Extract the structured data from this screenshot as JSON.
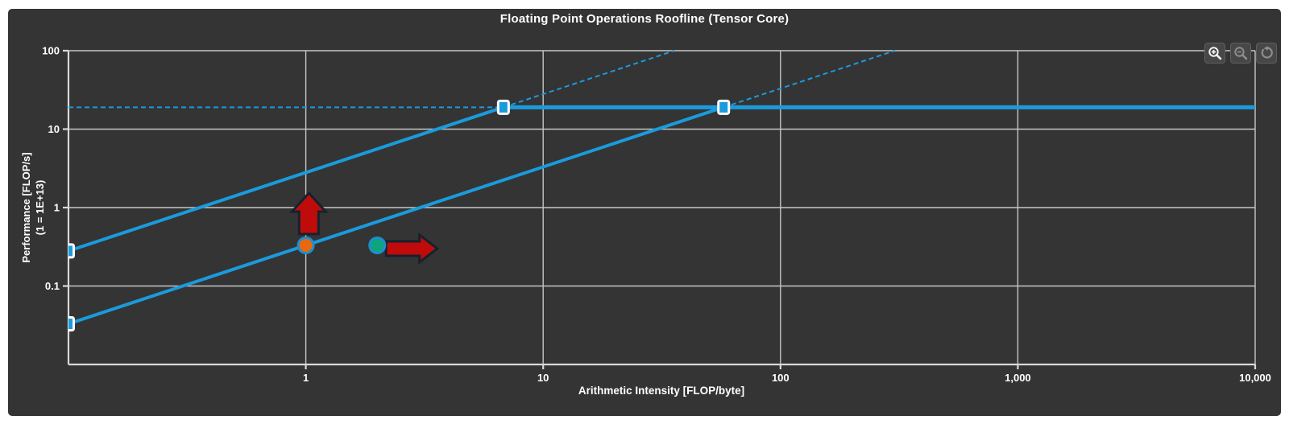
{
  "header": {
    "title": "Floating Point Operations Roofline (Tensor Core)"
  },
  "toolbar": {
    "buttons": [
      {
        "name": "zoom-in",
        "enabled": true
      },
      {
        "name": "zoom-out",
        "enabled": false
      },
      {
        "name": "reset",
        "enabled": false
      }
    ]
  },
  "colors": {
    "panel": "#343434",
    "line": "#1a9bdc",
    "grid": "#c6c6c6",
    "axis": "#d9d9d9",
    "text": "#ffffff",
    "marker_fill": "#1a9bdc",
    "marker_stroke": "#ffffff",
    "point_orange": "#e8680f",
    "point_teal": "#0ca57d",
    "point_stroke": "#1e8fd0",
    "arrow_fill": "#c00b0b",
    "arrow_stroke": "#15222e"
  },
  "chart_data": {
    "type": "line",
    "title": "Floating Point Operations Roofline (Tensor Core)",
    "xlabel": "Arithmetic Intensity [FLOP/byte]",
    "ylabel_line1": "Performance [FLOP/s]",
    "ylabel_line2": "(1 = 1E+13)",
    "x_scale": "log",
    "y_scale": "log",
    "xlim": [
      0.1,
      10000
    ],
    "ylim": [
      0.01,
      100
    ],
    "grid": true,
    "legend": "none",
    "x_ticks": [
      {
        "value": 1,
        "label": "1"
      },
      {
        "value": 10,
        "label": "10"
      },
      {
        "value": 100,
        "label": "100"
      },
      {
        "value": 1000,
        "label": "1,000"
      },
      {
        "value": 10000,
        "label": "10,000"
      }
    ],
    "y_ticks": [
      {
        "value": 100,
        "label": "100"
      },
      {
        "value": 10,
        "label": "10"
      },
      {
        "value": 1,
        "label": "1"
      },
      {
        "value": 0.1,
        "label": "0.1"
      }
    ],
    "peak_compute": 19,
    "series": [
      {
        "name": "compute-roofline",
        "segments": [
          {
            "x1": 0.1,
            "y1": 19,
            "x2": 6.8,
            "y2": 19,
            "dash": true
          },
          {
            "x1": 6.8,
            "y1": 19,
            "x2": 10000,
            "y2": 19,
            "dash": false
          }
        ],
        "markers": [
          [
            6.8,
            19
          ],
          [
            57.6,
            19
          ]
        ]
      },
      {
        "name": "memory-roofline-fast",
        "bandwidth": 2.8,
        "segments": [
          {
            "x1": 0.1,
            "y1": 0.28,
            "x2": 6.8,
            "y2": 19,
            "dash": false
          },
          {
            "x1": 6.8,
            "y1": 19,
            "x2": 35.7,
            "y2": 100,
            "dash": true
          }
        ],
        "markers": [
          [
            0.1,
            0.28
          ]
        ]
      },
      {
        "name": "memory-roofline-slow",
        "bandwidth": 0.33,
        "segments": [
          {
            "x1": 0.1,
            "y1": 0.033,
            "x2": 57.6,
            "y2": 19,
            "dash": false
          },
          {
            "x1": 57.6,
            "y1": 19,
            "x2": 303,
            "y2": 100,
            "dash": true
          }
        ],
        "markers": [
          [
            0.1,
            0.033
          ]
        ]
      }
    ],
    "points": [
      {
        "name": "kernel-point-orange",
        "x": 1,
        "y": 0.33,
        "fill": "point_orange"
      },
      {
        "name": "kernel-point-teal",
        "x": 2,
        "y": 0.33,
        "fill": "point_teal"
      }
    ],
    "annotations": [
      {
        "type": "arrow-up",
        "x": 1.03,
        "y_from": 0.46,
        "y_to": 1.53
      },
      {
        "type": "arrow-right",
        "x_from": 2.18,
        "x_to": 3.58,
        "y": 0.3
      }
    ]
  }
}
